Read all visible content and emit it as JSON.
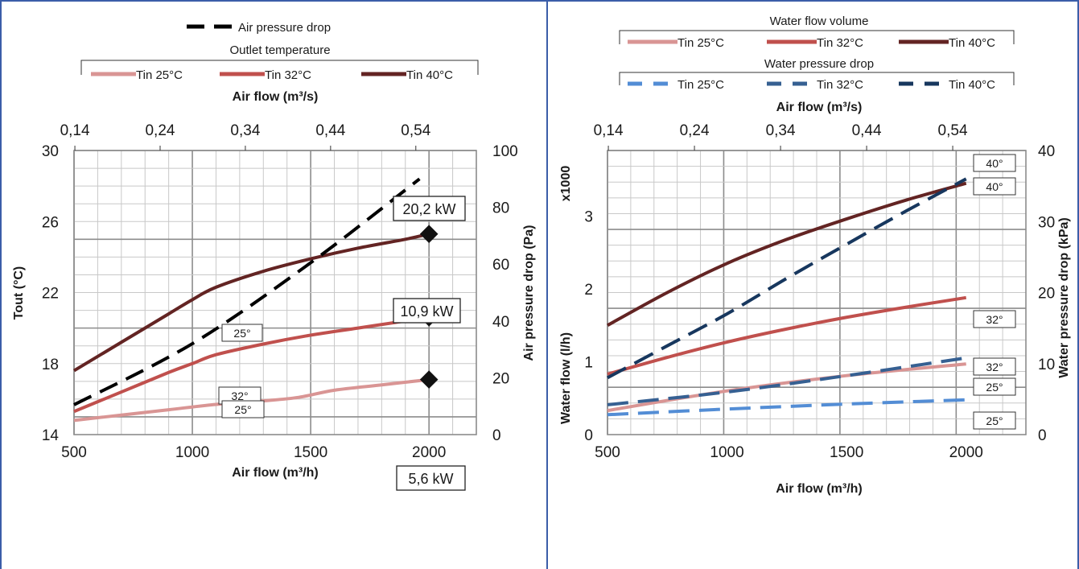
{
  "colors": {
    "c25": "#d99594",
    "c32": "#c0504d",
    "c40": "#632423",
    "air_dp": "#000000",
    "w25": "#538dd5",
    "w32": "#366092",
    "w40": "#17375e",
    "grid": "#8c8c8c",
    "frame": "#3b5da8"
  },
  "chart_data": [
    {
      "type": "line",
      "legend": {
        "air_dp_label": "Air pressure drop",
        "outlet_title": "Outlet temperature",
        "items": [
          "Tin 25°C",
          "Tin 32°C",
          "Tin 40°C"
        ]
      },
      "x_bottom": {
        "label": "Air flow (m³/h)",
        "ticks": [
          "500",
          "1000",
          "1500",
          "2000"
        ],
        "range": [
          500,
          2200
        ]
      },
      "x_top": {
        "label": "Air flow (m³/s)",
        "ticks": [
          "0,14",
          "0,24",
          "0,34",
          "0,44",
          "0,54"
        ],
        "range": [
          0.139,
          0.611
        ]
      },
      "y_left": {
        "label": "Tout (°C)",
        "ticks": [
          "14",
          "18",
          "22",
          "26",
          "30"
        ],
        "range": [
          14,
          30
        ]
      },
      "y_right": {
        "label": "Air pressure drop (Pa)",
        "ticks": [
          "0",
          "20",
          "40",
          "60",
          "80",
          "100"
        ],
        "range": [
          0,
          100
        ]
      },
      "series": [
        {
          "name": "Tin 25°C",
          "axis": "left",
          "color_key": "c25",
          "tag": "25°",
          "x": [
            500,
            700,
            900,
            1100,
            1300,
            1450,
            1600,
            1800,
            2000
          ],
          "y": [
            14.8,
            15.1,
            15.4,
            15.7,
            15.9,
            16.1,
            16.5,
            16.8,
            17.1
          ]
        },
        {
          "name": "Tin 32°C",
          "axis": "left",
          "color_key": "c32",
          "tag": "32°",
          "x": [
            500,
            700,
            900,
            1000,
            1100,
            1300,
            1500,
            1700,
            1900,
            2000
          ],
          "y": [
            15.3,
            16.4,
            17.5,
            18.0,
            18.5,
            19.1,
            19.6,
            20.0,
            20.4,
            20.6
          ]
        },
        {
          "name": "Tin 40°C",
          "axis": "left",
          "color_key": "c40",
          "tag": "40°",
          "x": [
            500,
            700,
            900,
            1000,
            1100,
            1300,
            1500,
            1700,
            1900,
            2000
          ],
          "y": [
            17.6,
            19.2,
            20.8,
            21.6,
            22.3,
            23.2,
            23.9,
            24.5,
            25.0,
            25.3
          ]
        },
        {
          "name": "Air pressure drop",
          "axis": "right",
          "color_key": "air_dp",
          "dashed": true,
          "x": [
            500,
            1000,
            1500,
            1960
          ],
          "y": [
            10.5,
            32.0,
            60.5,
            90.0
          ]
        }
      ],
      "markers": [
        {
          "x": 2000,
          "y": 17.1,
          "label": "5,6 kW"
        },
        {
          "x": 2000,
          "y": 20.6,
          "label": "10,9 kW"
        },
        {
          "x": 2000,
          "y": 25.3,
          "label": "20,2 kW"
        }
      ]
    },
    {
      "type": "line",
      "legend": {
        "flow_title": "Water flow volume",
        "dp_title": "Water pressure drop",
        "items": [
          "Tin 25°C",
          "Tin 32°C",
          "Tin 40°C"
        ]
      },
      "x_bottom": {
        "label": "Air flow (m³/h)",
        "ticks": [
          "500",
          "1000",
          "1500",
          "2000"
        ],
        "range": [
          500,
          2250
        ]
      },
      "x_top": {
        "label": "Air flow (m³/s)",
        "ticks": [
          "0,14",
          "0,24",
          "0,34",
          "0,44",
          "0,54"
        ],
        "range": [
          0.139,
          0.625
        ]
      },
      "y_left": {
        "label": "Water flow (l/h)",
        "multiplier": "x1000",
        "ticks": [
          "0",
          "1",
          "2",
          "3"
        ],
        "range": [
          0,
          3.9
        ]
      },
      "y_right": {
        "label": "Water pressure drop (kPa)",
        "ticks": [
          "0",
          "10",
          "20",
          "30",
          "40"
        ],
        "range": [
          0,
          40
        ]
      },
      "series": [
        {
          "name": "Tin 25°C",
          "group": "flow",
          "axis": "left",
          "color_key": "c25",
          "tag": "25°",
          "x": [
            500,
            1000,
            1500,
            2000
          ],
          "y": [
            0.33,
            0.6,
            0.81,
            0.97
          ]
        },
        {
          "name": "Tin 32°C",
          "group": "flow",
          "axis": "left",
          "color_key": "c32",
          "tag": "32°",
          "x": [
            500,
            750,
            1000,
            1250,
            1500,
            1750,
            2000
          ],
          "y": [
            0.83,
            1.06,
            1.27,
            1.45,
            1.61,
            1.75,
            1.88
          ]
        },
        {
          "name": "Tin 40°C",
          "group": "flow",
          "axis": "left",
          "color_key": "c40",
          "tag": "40°",
          "x": [
            500,
            750,
            1000,
            1250,
            1500,
            1750,
            2000
          ],
          "y": [
            1.5,
            1.95,
            2.35,
            2.68,
            2.96,
            3.22,
            3.45
          ]
        },
        {
          "name": "Tin 25°C",
          "group": "dp",
          "axis": "right",
          "color_key": "w25",
          "dashed": true,
          "tag": "25°",
          "x": [
            500,
            1000,
            1500,
            2000
          ],
          "y": [
            2.8,
            3.6,
            4.3,
            4.9
          ]
        },
        {
          "name": "Tin 32°C",
          "group": "dp",
          "axis": "right",
          "color_key": "w32",
          "dashed": true,
          "tag": "32°",
          "x": [
            500,
            1000,
            1500,
            2000
          ],
          "y": [
            4.2,
            6.0,
            8.3,
            10.8
          ]
        },
        {
          "name": "Tin 40°C",
          "group": "dp",
          "axis": "right",
          "color_key": "w40",
          "dashed": true,
          "tag": "40°",
          "x": [
            500,
            750,
            1000,
            1250,
            1500,
            1750,
            2000
          ],
          "y": [
            8.0,
            12.5,
            17.0,
            22.0,
            26.8,
            31.5,
            36.0
          ]
        }
      ]
    }
  ]
}
